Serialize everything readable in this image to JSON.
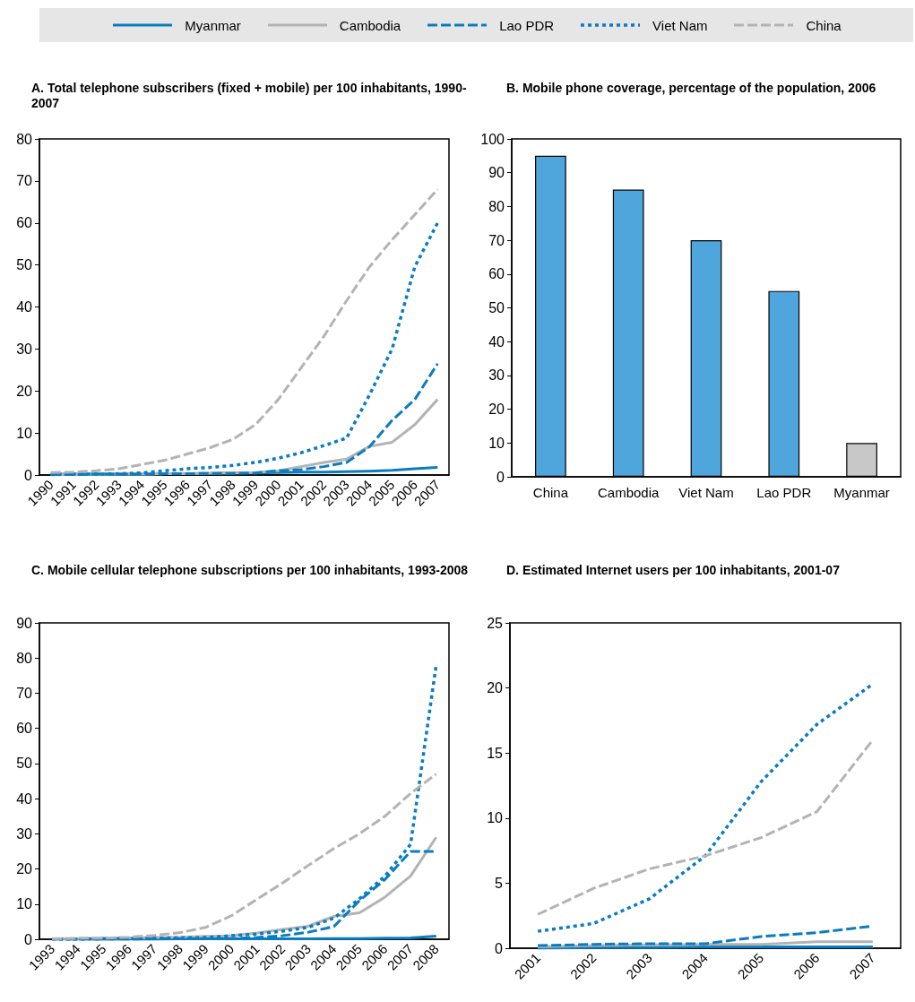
{
  "chart_data": [
    {
      "type": "line",
      "title": "A. Total telephone subscribers (fixed + mobile) per 100 inhabitants, 1990-2007",
      "legend": "top",
      "categories": [
        "1990",
        "1991",
        "1992",
        "1993",
        "1994",
        "1995",
        "1996",
        "1997",
        "1998",
        "1999",
        "2000",
        "2001",
        "2002",
        "2003",
        "2004",
        "2005",
        "2006",
        "2007"
      ],
      "ylim": [
        0,
        80
      ],
      "yticks": [
        0,
        10,
        20,
        30,
        40,
        50,
        60,
        70,
        80
      ],
      "series": [
        {
          "name": "Myanmar",
          "color": "#0a7cc1",
          "line_style": "solid",
          "values": [
            0.2,
            0.2,
            0.2,
            0.2,
            0.2,
            0.3,
            0.3,
            0.4,
            0.5,
            0.5,
            0.6,
            0.7,
            0.7,
            0.8,
            0.9,
            1.1,
            1.5,
            1.8
          ]
        },
        {
          "name": "Cambodia",
          "color": "#b3b3b3",
          "line_style": "solid",
          "values": [
            0.1,
            0.1,
            0.1,
            0.2,
            0.2,
            0.3,
            0.3,
            0.4,
            0.5,
            0.6,
            1,
            2,
            3,
            3.8,
            6.8,
            7.8,
            12,
            18
          ]
        },
        {
          "name": "Lao PDR",
          "color": "#0a7cc1",
          "line_style": "dashed",
          "values": [
            0.1,
            0.1,
            0.2,
            0.2,
            0.2,
            0.3,
            0.3,
            0.4,
            0.4,
            0.5,
            1,
            1.3,
            2,
            3,
            6.7,
            13,
            18,
            26.5
          ]
        },
        {
          "name": "Viet Nam",
          "color": "#0a7cc1",
          "line_style": "dotted",
          "values": [
            0.1,
            0.2,
            0.2,
            0.3,
            0.5,
            1,
            1.5,
            1.8,
            2.3,
            3,
            4,
            5.3,
            7,
            8.8,
            19,
            30,
            49.6,
            60
          ]
        },
        {
          "name": "China",
          "color": "#b3b3b3",
          "line_style": "dashed",
          "values": [
            0.6,
            0.7,
            1,
            1.5,
            2.5,
            3.5,
            5,
            6.5,
            8.5,
            12,
            18,
            25.5,
            33,
            41.5,
            49.5,
            56,
            62,
            68
          ]
        }
      ]
    },
    {
      "type": "bar",
      "title": "B. Mobile phone coverage, percentage of the population, 2006",
      "categories": [
        "China",
        "Cambodia",
        "Viet Nam",
        "Lao PDR",
        "Myanmar"
      ],
      "values": [
        95,
        85,
        70,
        55,
        10
      ],
      "colors": [
        "#4ea6dc",
        "#4ea6dc",
        "#4ea6dc",
        "#4ea6dc",
        "#c8c8c8"
      ],
      "ylim": [
        0,
        100
      ],
      "yticks": [
        0,
        10,
        20,
        30,
        40,
        50,
        60,
        70,
        80,
        90,
        100
      ]
    },
    {
      "type": "line",
      "title": "C. Mobile cellular telephone subscriptions per 100 inhabitants, 1993-2008",
      "categories": [
        "1993",
        "1994",
        "1995",
        "1996",
        "1997",
        "1998",
        "1999",
        "2000",
        "2001",
        "2002",
        "2003",
        "2004",
        "2005",
        "2006",
        "2007",
        "2008"
      ],
      "ylim": [
        0,
        90
      ],
      "yticks": [
        0,
        10,
        20,
        30,
        40,
        50,
        60,
        70,
        80,
        90
      ],
      "series": [
        {
          "color": "#0a7cc1",
          "line_style": "solid",
          "values": [
            0,
            0,
            0,
            0,
            0,
            0.1,
            0.1,
            0.1,
            0.1,
            0.1,
            0.1,
            0.2,
            0.2,
            0.3,
            0.4,
            0.9
          ]
        },
        {
          "color": "#b3b3b3",
          "line_style": "solid",
          "values": [
            0.1,
            0.2,
            0.3,
            0.4,
            0.5,
            0.6,
            0.8,
            1,
            1.8,
            2.8,
            3.7,
            6.5,
            7.5,
            12,
            18,
            29
          ]
        },
        {
          "color": "#0a7cc1",
          "line_style": "dashed",
          "values": [
            0,
            0,
            0,
            0,
            0.1,
            0.1,
            0.1,
            0.2,
            0.5,
            1,
            2,
            3.6,
            11,
            17,
            25,
            25
          ]
        },
        {
          "color": "#0a7cc1",
          "line_style": "dotted",
          "values": [
            0,
            0,
            0.1,
            0.2,
            0.3,
            0.4,
            0.5,
            1,
            1.5,
            2.3,
            3.4,
            6,
            11.5,
            18,
            27,
            78
          ]
        },
        {
          "color": "#b3b3b3",
          "line_style": "dashed",
          "values": [
            0.1,
            0.3,
            0.3,
            0.6,
            1.1,
            1.9,
            3.4,
            6.7,
            11.4,
            16,
            21,
            25.8,
            30,
            35,
            41.5,
            47
          ]
        }
      ]
    },
    {
      "type": "line",
      "title": "D. Estimated Internet users per 100 inhabitants, 2001-07",
      "categories": [
        "2001",
        "2002",
        "2003",
        "2004",
        "2005",
        "2006",
        "2007"
      ],
      "ylim": [
        0,
        25
      ],
      "yticks": [
        0,
        5,
        10,
        15,
        20,
        25
      ],
      "series": [
        {
          "color": "#0a7cc1",
          "line_style": "solid",
          "values": [
            0,
            0.05,
            0.05,
            0.1,
            0.1,
            0.1,
            0.1
          ]
        },
        {
          "color": "#b3b3b3",
          "line_style": "solid",
          "values": [
            0.1,
            0.2,
            0.25,
            0.3,
            0.3,
            0.5,
            0.5
          ]
        },
        {
          "color": "#0a7cc1",
          "line_style": "dashed",
          "values": [
            0.2,
            0.3,
            0.35,
            0.35,
            0.9,
            1.2,
            1.7
          ]
        },
        {
          "color": "#0a7cc1",
          "line_style": "dotted",
          "values": [
            1.3,
            1.9,
            3.8,
            7.1,
            12.8,
            17.2,
            20.3
          ]
        },
        {
          "color": "#b3b3b3",
          "line_style": "dashed",
          "values": [
            2.6,
            4.6,
            6.1,
            7.1,
            8.5,
            10.5,
            16
          ]
        }
      ]
    }
  ]
}
